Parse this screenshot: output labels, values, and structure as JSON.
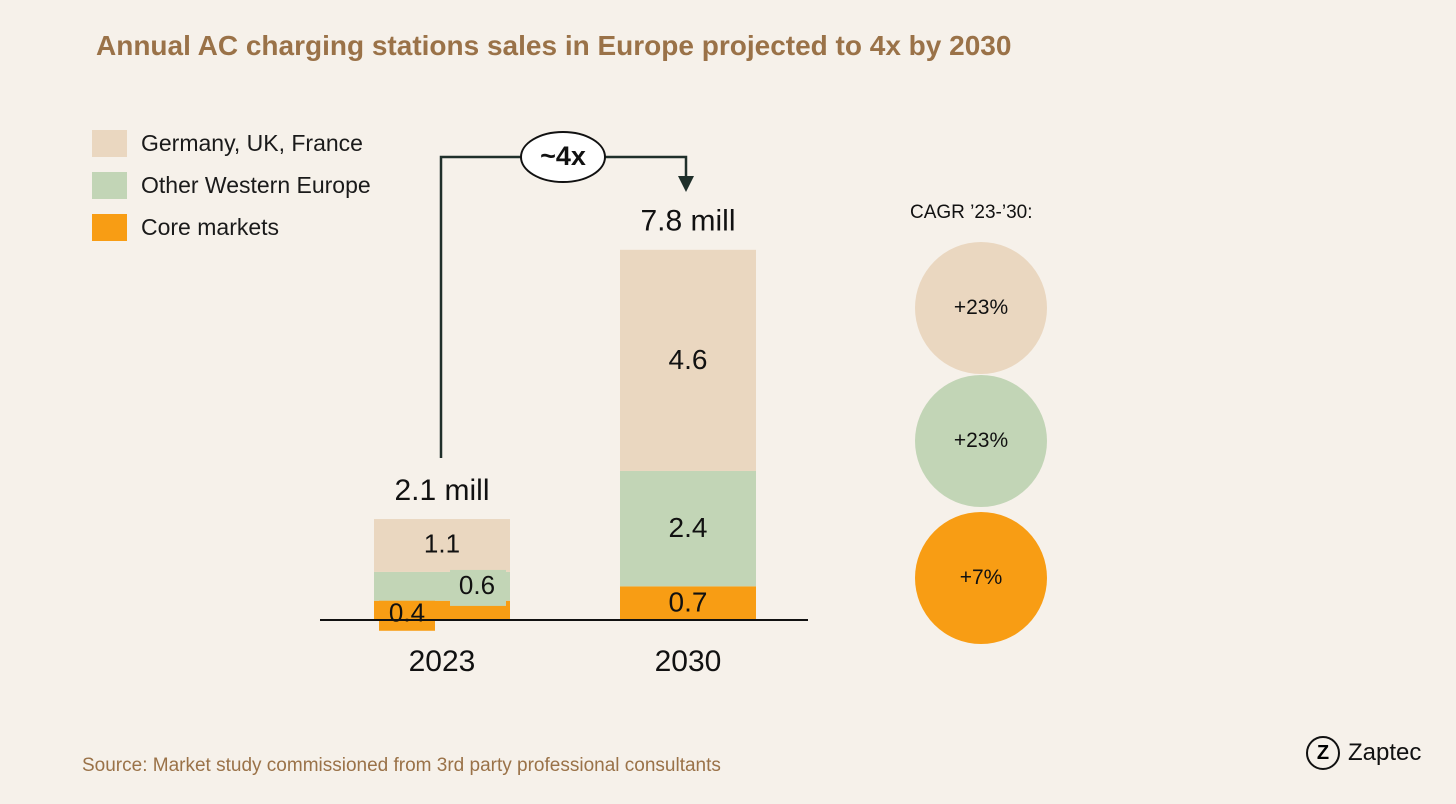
{
  "title": "Annual AC charging stations sales in Europe projected to 4x by 2030",
  "colors": {
    "germany_uk_france": "#ead7c0",
    "other_western_europe": "#c2d5b6",
    "core_markets": "#f89d14",
    "title": "#9a7248",
    "arrow": "#1f2f2a"
  },
  "legend": [
    {
      "label": "Germany, UK, France",
      "color": "#ead7c0"
    },
    {
      "label": "Other Western Europe",
      "color": "#c2d5b6"
    },
    {
      "label": "Core markets",
      "color": "#f89d14"
    }
  ],
  "chart_data": {
    "type": "bar",
    "stacked": true,
    "categories": [
      "2023",
      "2030"
    ],
    "series": [
      {
        "name": "Core markets",
        "values": [
          0.4,
          0.7
        ],
        "labels": [
          "0.4",
          "0.7"
        ]
      },
      {
        "name": "Other Western Europe",
        "values": [
          0.6,
          2.4
        ],
        "labels": [
          "0.6",
          "2.4"
        ]
      },
      {
        "name": "Germany, UK, France",
        "values": [
          1.1,
          4.6
        ],
        "labels": [
          "1.1",
          "4.6"
        ]
      }
    ],
    "totals": [
      "2.1 mill",
      "7.8 mill"
    ],
    "growth_label": "~4x",
    "ylim": [
      0,
      7.8
    ],
    "legend_position": "top-left",
    "grid": false
  },
  "cagr": {
    "title": "CAGR ’23-’30:",
    "items": [
      {
        "label": "+23%",
        "color": "#ead7c0"
      },
      {
        "label": "+23%",
        "color": "#c2d5b6"
      },
      {
        "label": "+7%",
        "color": "#f89d14"
      }
    ]
  },
  "source": "Source: Market study commissioned from 3rd party professional consultants",
  "brand": {
    "mark": "Z",
    "name": "Zaptec"
  }
}
